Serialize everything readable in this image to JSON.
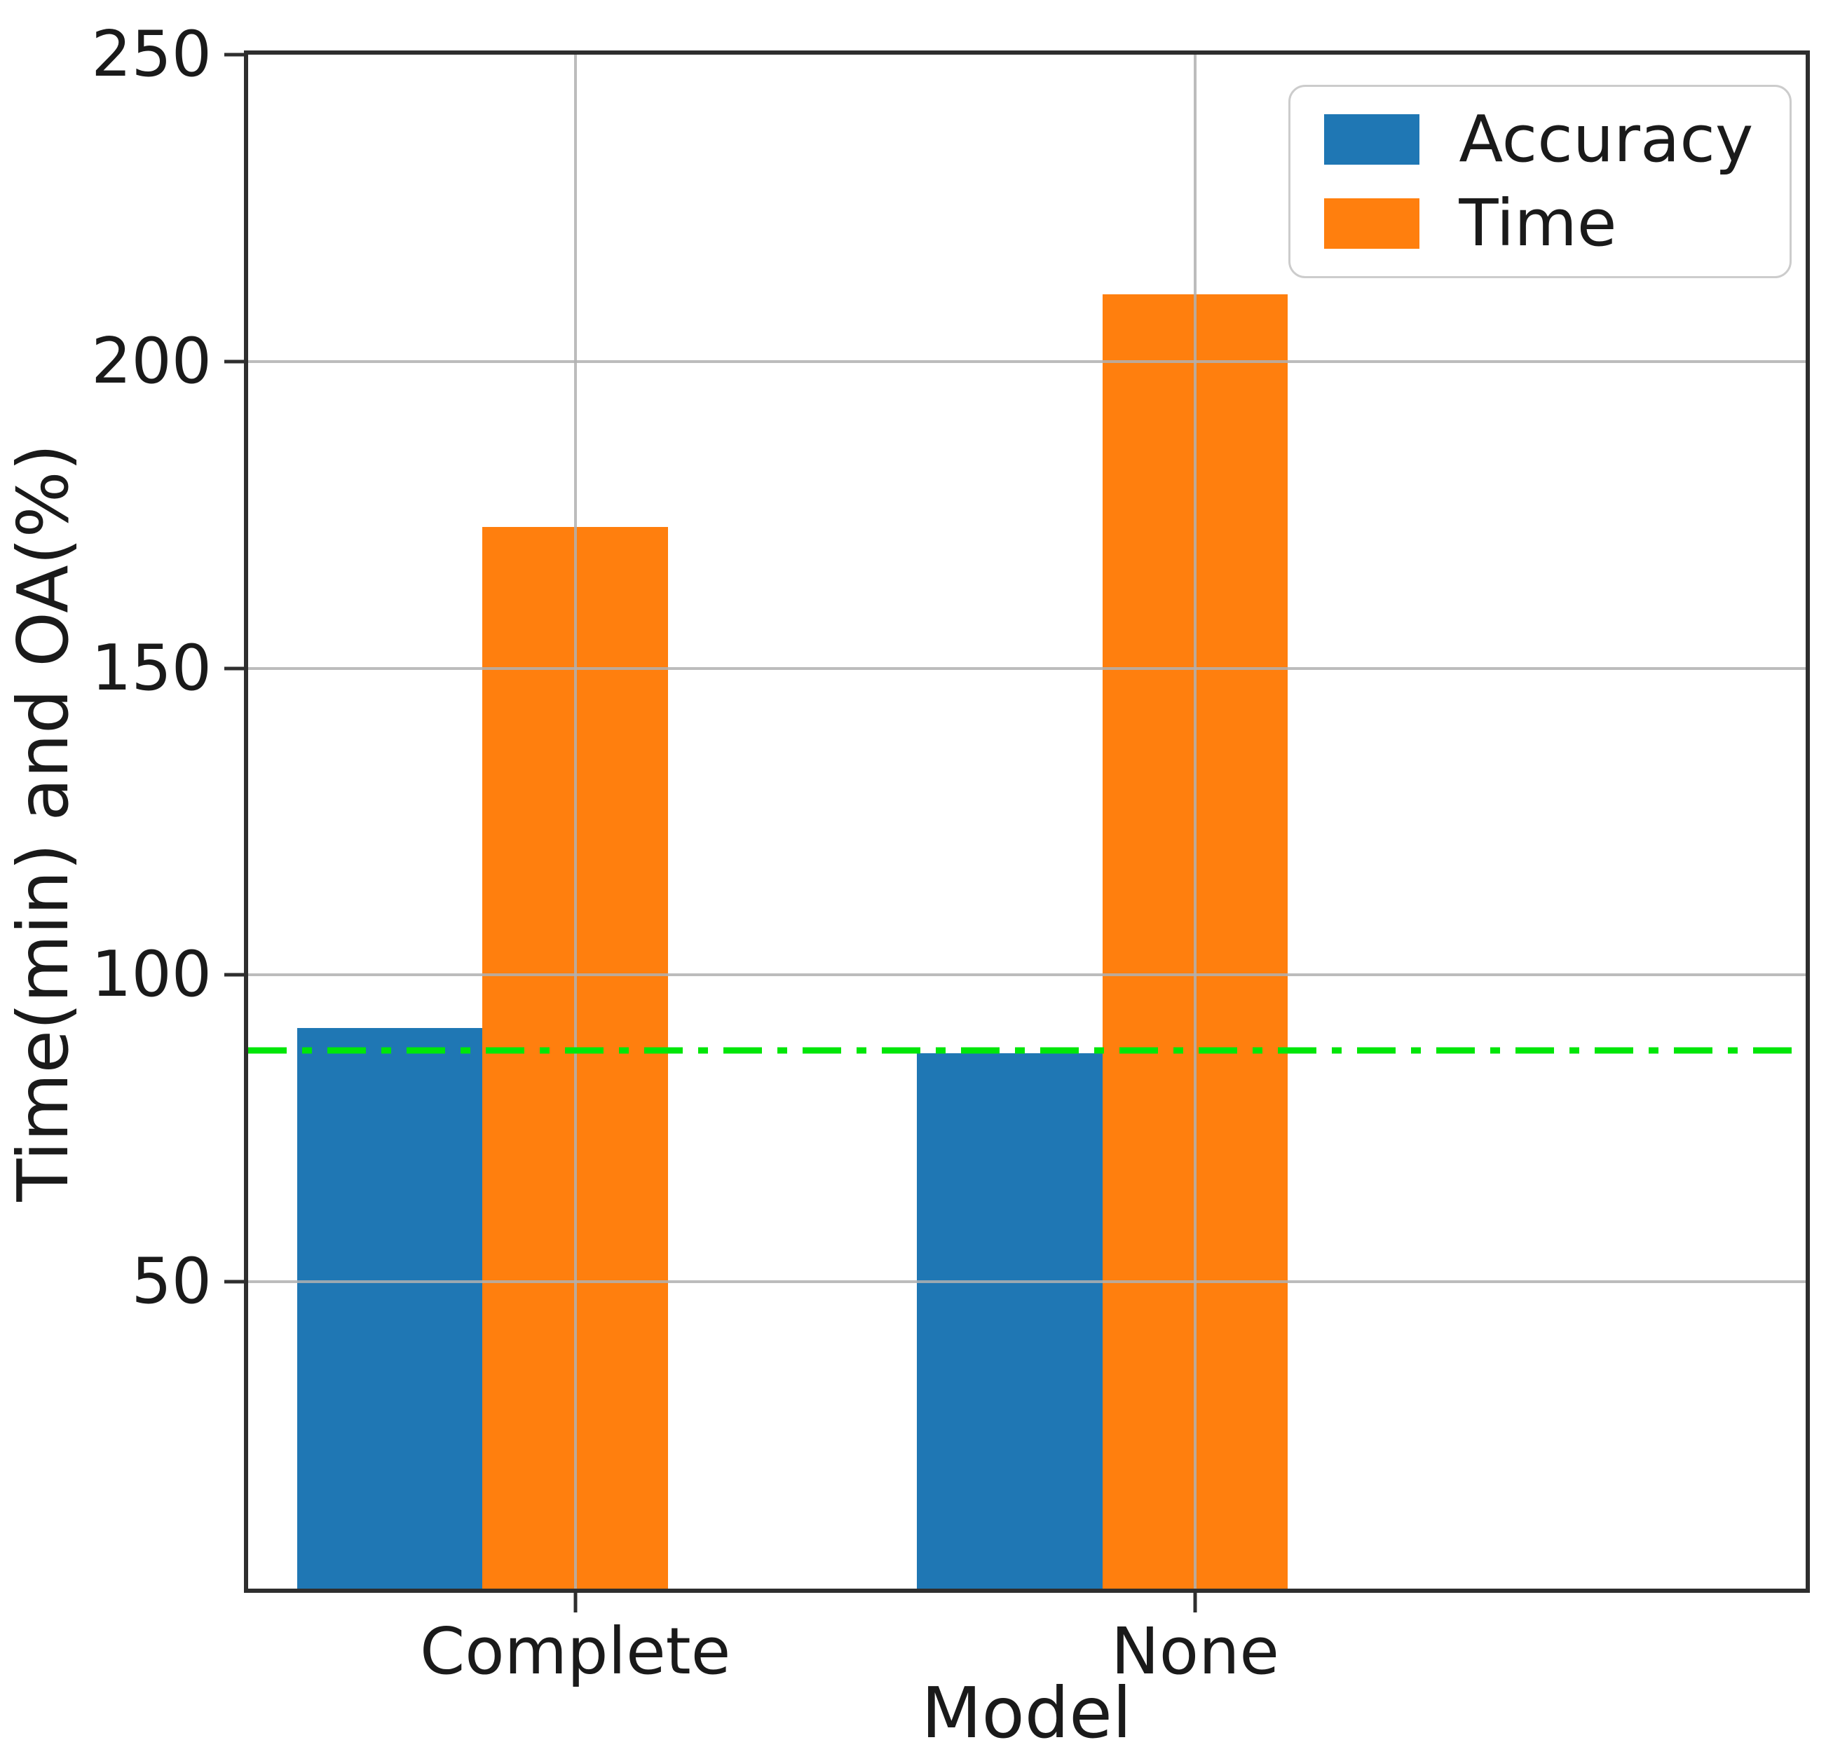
{
  "figure": {
    "background": "#ffffff",
    "xlabel": "Model",
    "ylabel": "Time(min) and OA(%)"
  },
  "legend": {
    "position": "upper right",
    "items": [
      {
        "label": "Accuracy",
        "color": "#1f77b4"
      },
      {
        "label": "Time",
        "color": "#ff7f0e"
      }
    ]
  },
  "chart_data": {
    "type": "bar",
    "categories": [
      "Complete",
      "None"
    ],
    "series": [
      {
        "name": "Accuracy",
        "color": "#1f77b4",
        "values": [
          91.4,
          87.2
        ]
      },
      {
        "name": "Time",
        "color": "#ff7f0e",
        "values": [
          173,
          211
        ]
      }
    ],
    "reference_line": {
      "value": 87.7,
      "color": "#00e608",
      "style": "dash-dot"
    },
    "title": "",
    "xlabel": "Model",
    "ylabel": "Time(min) and OA(%)",
    "ylim": [
      0,
      250
    ],
    "yticks": [
      50,
      100,
      150,
      200,
      250
    ],
    "grid": true,
    "grid_color": "#b0b0b0",
    "grid_above_bars": true,
    "legend_position": "upper right",
    "layout": {
      "category_centers_pct": [
        21.0,
        60.8
      ],
      "bar_width_pct": 11.9
    }
  },
  "colors": {
    "spine": "#2e2e2e",
    "text": "#1a1a1a",
    "plot_background": "#ffffff"
  }
}
